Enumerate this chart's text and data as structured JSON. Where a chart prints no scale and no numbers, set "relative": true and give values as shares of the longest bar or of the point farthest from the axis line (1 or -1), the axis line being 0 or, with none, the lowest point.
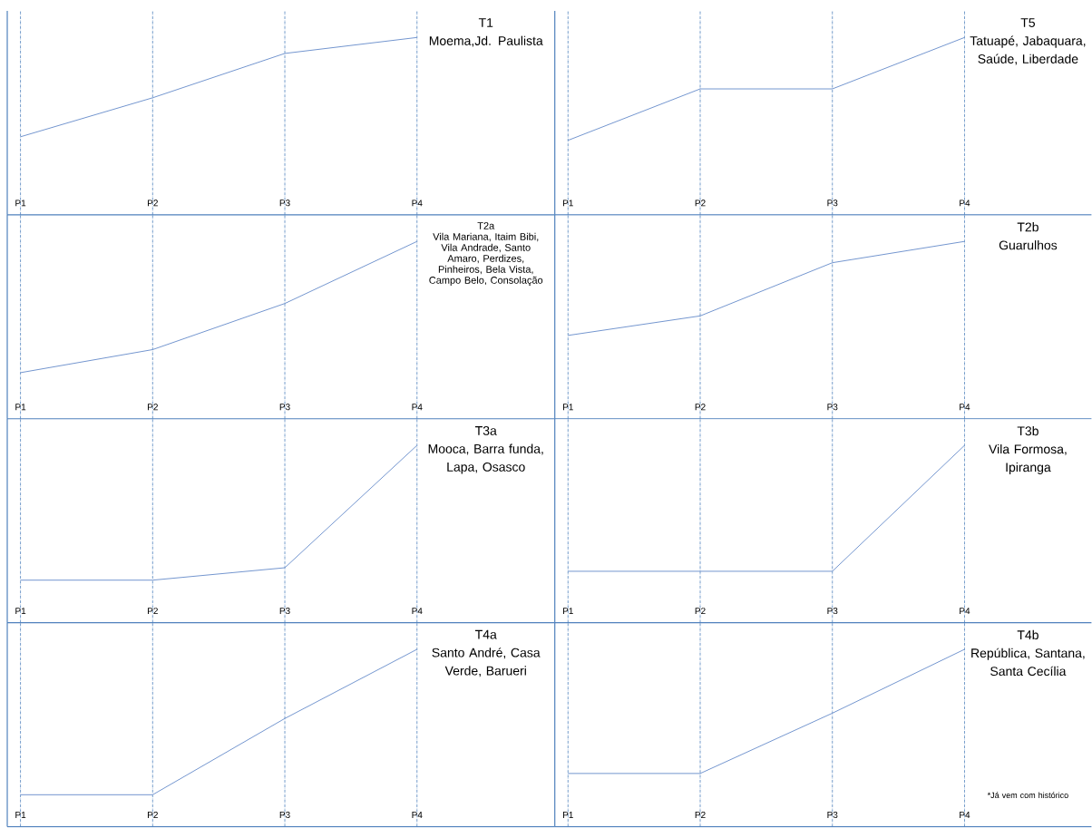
{
  "chart_data": [
    {
      "type": "line",
      "title": "T1",
      "subtitle": "Moema,Jd. Paulista",
      "categories": [
        "P1",
        "P2",
        "P3",
        "P4"
      ],
      "values": [
        0.44,
        0.66,
        0.91,
        1
      ],
      "color": "#7396cf",
      "relative": true,
      "grid": "x"
    },
    {
      "type": "line",
      "title": "T5",
      "subtitle": "Tatuapé, Jabaquara, Saúde, Liberdade",
      "categories": [
        "P1",
        "P2",
        "P3",
        "P4"
      ],
      "values": [
        0.42,
        0.71,
        0.71,
        1
      ],
      "color": "#7396cf",
      "relative": true,
      "grid": "x"
    },
    {
      "type": "line",
      "title": "T2a",
      "subtitle": "Vila Mariana, Itaim Bibi, Vila Andrade, Santo Amaro, Perdizes, Pinheiros, Bela Vista, Campo Belo, Consolação",
      "categories": [
        "P1",
        "P2",
        "P3",
        "P4"
      ],
      "values": [
        0.26,
        0.39,
        0.65,
        1
      ],
      "color": "#7396cf",
      "relative": true,
      "grid": "x"
    },
    {
      "type": "line",
      "title": "T2b",
      "subtitle": "Guarulhos",
      "categories": [
        "P1",
        "P2",
        "P3",
        "P4"
      ],
      "values": [
        0.47,
        0.58,
        0.88,
        1
      ],
      "color": "#7396cf",
      "relative": true,
      "grid": "x"
    },
    {
      "type": "line",
      "title": "T3a",
      "subtitle": "Mooca, Barra funda, Lapa, Osasco",
      "categories": [
        "P1",
        "P2",
        "P3",
        "P4"
      ],
      "values": [
        0.24,
        0.24,
        0.31,
        1
      ],
      "color": "#7396cf",
      "relative": true,
      "grid": "x"
    },
    {
      "type": "line",
      "title": "T3b",
      "subtitle": "Vila Formosa, Ipiranga",
      "categories": [
        "P1",
        "P2",
        "P3",
        "P4"
      ],
      "values": [
        0.29,
        0.29,
        0.29,
        1
      ],
      "color": "#7396cf",
      "relative": true,
      "grid": "x"
    },
    {
      "type": "line",
      "title": "T4a",
      "subtitle": "Santo André, Casa Verde, Barueri",
      "categories": [
        "P1",
        "P2",
        "P3",
        "P4"
      ],
      "values": [
        0.18,
        0.18,
        0.61,
        1
      ],
      "color": "#7396cf",
      "relative": true,
      "grid": "x"
    },
    {
      "type": "line",
      "title": "T4b",
      "subtitle": "República, Santana, Santa Cecília",
      "categories": [
        "P1",
        "P2",
        "P3",
        "P4"
      ],
      "values": [
        0.3,
        0.3,
        0.64,
        1
      ],
      "color": "#7396cf",
      "relative": true,
      "grid": "x",
      "annotations": [
        "*Já vem com histórico"
      ]
    }
  ]
}
